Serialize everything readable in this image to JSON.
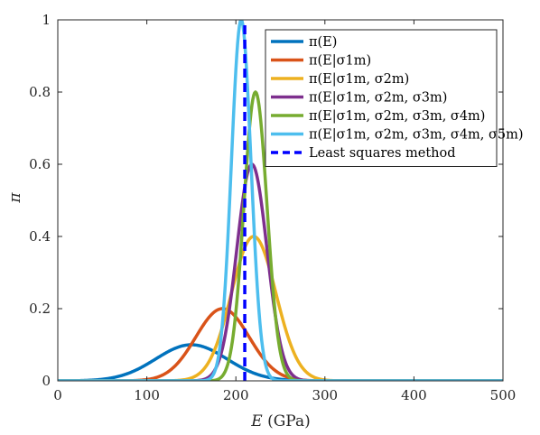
{
  "chart_data": {
    "type": "line",
    "xlabel": "E (GPa)",
    "ylabel": "π",
    "xlim": [
      0,
      500
    ],
    "ylim": [
      0,
      1
    ],
    "xticks": [
      "0",
      "100",
      "200",
      "300",
      "400",
      "500"
    ],
    "yticks": [
      "0",
      "0.2",
      "0.4",
      "0.6",
      "0.8",
      "1"
    ],
    "x_tick_values": [
      0,
      100,
      200,
      300,
      400,
      500
    ],
    "y_tick_values": [
      0,
      0.2,
      0.4,
      0.6,
      0.8,
      1
    ],
    "grid": false,
    "legend_position": "top-right",
    "series": [
      {
        "name": "π(E)",
        "color": "#0072BD",
        "mean": 150,
        "sd": 40,
        "peak": 0.1,
        "style": "solid"
      },
      {
        "name": "π(E|σ1m)",
        "color": "#D95319",
        "mean": 185,
        "sd": 30,
        "peak": 0.2,
        "style": "solid"
      },
      {
        "name": "π(E|σ1m, σ2m)",
        "color": "#EDB120",
        "mean": 220,
        "sd": 25,
        "peak": 0.4,
        "style": "solid"
      },
      {
        "name": "π(E|σ1m, σ2m, σ3m)",
        "color": "#7E2F8E",
        "mean": 218,
        "sd": 17,
        "peak": 0.6,
        "style": "solid"
      },
      {
        "name": "π(E|σ1m, σ2m, σ3m, σ4m)",
        "color": "#77AC30",
        "mean": 222,
        "sd": 13,
        "peak": 0.8,
        "style": "solid"
      },
      {
        "name": "π(E|σ1m, σ2m, σ3m, σ4m, σ5m)",
        "color": "#4DBEEE",
        "mean": 206,
        "sd": 11,
        "peak": 1.0,
        "style": "solid"
      },
      {
        "name": "Least squares method",
        "color": "#0000FF",
        "x": [
          210,
          210
        ],
        "y": [
          0,
          1
        ],
        "style": "dashed"
      }
    ]
  }
}
